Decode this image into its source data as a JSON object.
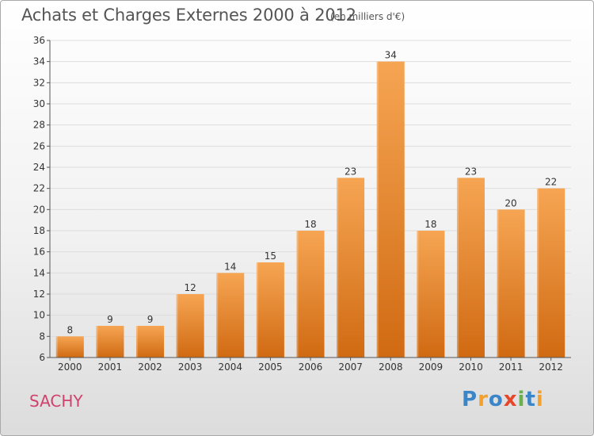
{
  "header": {
    "title": "Achats et Charges Externes 2000 à 2012",
    "subtitle": "(en milliers d'€)"
  },
  "footer": {
    "city": "SACHY",
    "logo": {
      "text": "Proxiti",
      "letters": [
        {
          "ch": "P",
          "color": "#3a86c8"
        },
        {
          "ch": "r",
          "color": "#f2a12e"
        },
        {
          "ch": "o",
          "color": "#3a86c8"
        },
        {
          "ch": "x",
          "color": "#e8462a"
        },
        {
          "ch": "i",
          "color": "#6ab04c"
        },
        {
          "ch": "t",
          "color": "#3a86c8"
        },
        {
          "ch": "i",
          "color": "#f2a12e"
        }
      ]
    }
  },
  "colors": {
    "bar_top": "#f6a553",
    "bar_bottom": "#d06a12",
    "grid": "#dddddd",
    "axis": "#555555"
  },
  "chart_data": {
    "type": "bar",
    "title": "Achats et Charges Externes 2000 à 2012",
    "subtitle": "(en milliers d'€)",
    "xlabel": "",
    "ylabel": "",
    "categories": [
      "2000",
      "2001",
      "2002",
      "2003",
      "2004",
      "2005",
      "2006",
      "2007",
      "2008",
      "2009",
      "2010",
      "2011",
      "2012"
    ],
    "values": [
      8,
      9,
      9,
      12,
      14,
      15,
      18,
      23,
      34,
      18,
      23,
      20,
      22
    ],
    "ylim": [
      6,
      36
    ],
    "yticks": [
      6,
      8,
      10,
      12,
      14,
      16,
      18,
      20,
      22,
      24,
      26,
      28,
      30,
      32,
      34,
      36
    ],
    "grid": true,
    "legend": "none",
    "data_labels": true
  }
}
